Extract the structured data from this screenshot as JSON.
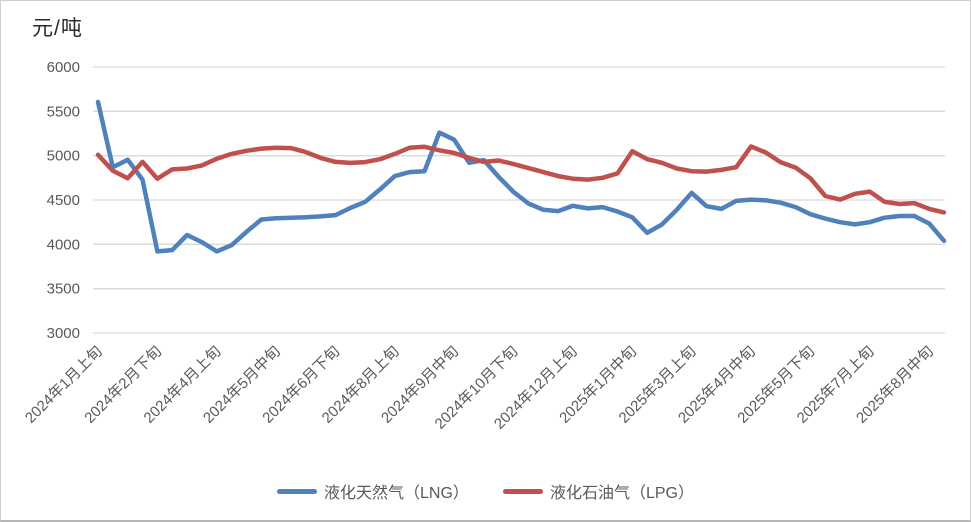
{
  "chart_data": {
    "type": "line",
    "unit_label": "元/吨",
    "grid": true,
    "legend_position": "bottom",
    "colors": {
      "lng": "#4F81BD",
      "lpg": "#C0504D",
      "gridline": "#D9D9D9",
      "axis_text": "#595959",
      "title_text": "#2B2B2B"
    },
    "y_axis": {
      "min": 3000,
      "max": 6000,
      "step": 500,
      "tick_labels": [
        "6000",
        "5500",
        "5000",
        "4500",
        "4000",
        "3500",
        "3000"
      ]
    },
    "x_axis": {
      "tick_interval": 4,
      "tick_labels": [
        "2024年1月上旬",
        "2024年2月下旬",
        "2024年4月上旬",
        "2024年5月中旬",
        "2024年6月下旬",
        "2024年8月上旬",
        "2024年9月中旬",
        "2024年10月下旬",
        "2024年12月上旬",
        "2025年1月中旬",
        "2025年3月上旬",
        "2025年4月中旬",
        "2025年5月下旬",
        "2025年7月上旬",
        "2025年8月中旬"
      ]
    },
    "categories": [
      "2024年1月上旬",
      "2024年1月中旬",
      "2024年1月下旬",
      "2024年2月中旬",
      "2024年2月下旬",
      "2024年3月上旬",
      "2024年3月中旬",
      "2024年3月下旬",
      "2024年4月上旬",
      "2024年4月中旬",
      "2024年4月下旬",
      "2024年5月上旬",
      "2024年5月中旬",
      "2024年5月下旬",
      "2024年6月上旬",
      "2024年6月中旬",
      "2024年6月下旬",
      "2024年7月上旬",
      "2024年7月中旬",
      "2024年7月下旬",
      "2024年8月上旬",
      "2024年8月中旬",
      "2024年8月下旬",
      "2024年9月上旬",
      "2024年9月中旬",
      "2024年9月下旬",
      "2024年10月上旬",
      "2024年10月中旬",
      "2024年10月下旬",
      "2024年11月上旬",
      "2024年11月中旬",
      "2024年11月下旬",
      "2024年12月上旬",
      "2024年12月中旬",
      "2024年12月下旬",
      "2025年1月上旬",
      "2025年1月中旬",
      "2025年1月下旬",
      "2025年2月中旬",
      "2025年2月下旬",
      "2025年3月上旬",
      "2025年3月中旬",
      "2025年3月下旬",
      "2025年4月上旬",
      "2025年4月中旬",
      "2025年4月下旬",
      "2025年5月上旬",
      "2025年5月中旬",
      "2025年5月下旬",
      "2025年6月上旬",
      "2025年6月中旬",
      "2025年6月下旬",
      "2025年7月上旬",
      "2025年7月中旬",
      "2025年7月下旬",
      "2025年8月上旬",
      "2025年8月中旬",
      "2025年8月下旬"
    ],
    "series": [
      {
        "key": "lng",
        "name": "液化天然气（LNG）",
        "color": "#4F81BD",
        "values": [
          5605,
          4870,
          4955,
          4730,
          3920,
          3935,
          4105,
          4025,
          3920,
          3990,
          4140,
          4280,
          4295,
          4300,
          4305,
          4315,
          4330,
          4410,
          4480,
          4620,
          4770,
          4815,
          4825,
          5260,
          5180,
          4920,
          4950,
          4760,
          4590,
          4460,
          4390,
          4375,
          4435,
          4405,
          4420,
          4370,
          4305,
          4130,
          4225,
          4390,
          4580,
          4430,
          4400,
          4490,
          4505,
          4495,
          4470,
          4420,
          4340,
          4290,
          4250,
          4225,
          4250,
          4300,
          4320,
          4320,
          4235,
          4040
        ]
      },
      {
        "key": "lpg",
        "name": "液化石油气（LPG）",
        "color": "#C0504D",
        "values": [
          5010,
          4830,
          4745,
          4930,
          4740,
          4845,
          4855,
          4890,
          4965,
          5020,
          5055,
          5080,
          5090,
          5085,
          5040,
          4975,
          4930,
          4918,
          4928,
          4960,
          5020,
          5090,
          5100,
          5060,
          5030,
          4975,
          4930,
          4945,
          4905,
          4860,
          4815,
          4770,
          4740,
          4730,
          4750,
          4800,
          5050,
          4960,
          4920,
          4855,
          4825,
          4820,
          4840,
          4870,
          5105,
          5035,
          4925,
          4865,
          4745,
          4545,
          4505,
          4570,
          4595,
          4480,
          4455,
          4465,
          4400,
          4360
        ]
      }
    ]
  }
}
